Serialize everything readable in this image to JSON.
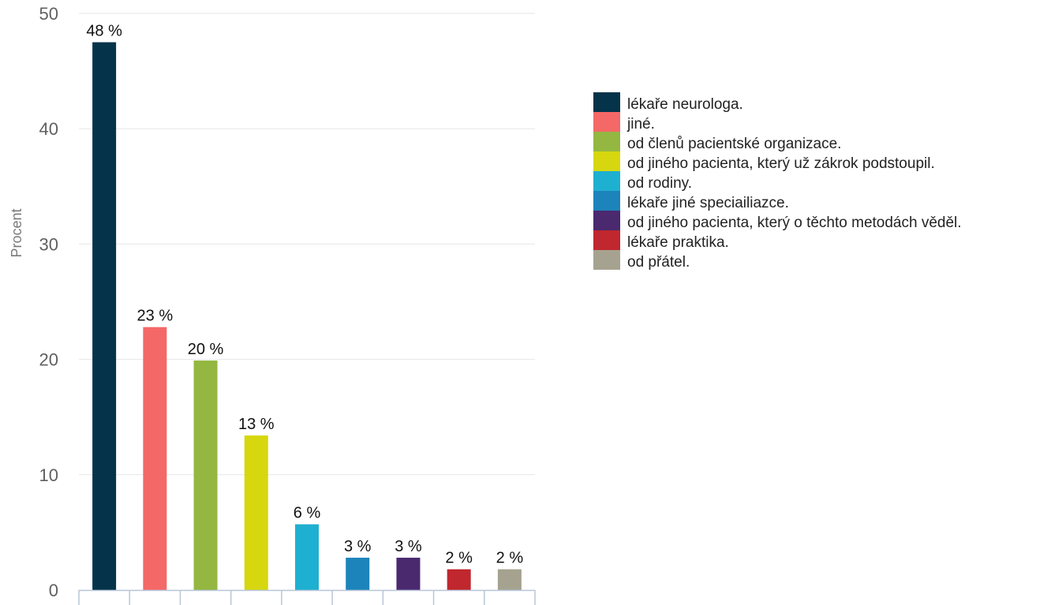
{
  "chart_data": {
    "type": "bar",
    "categories": [
      "lékaře neurologa.",
      "jiné.",
      "od členů pacientské organizace.",
      "od jiného pacienta, který už zákrok podstoupil.",
      "od rodiny.",
      "lékaře jiné speciailiazce.",
      "od jiného pacienta, který o těchto metodách věděl.",
      "lékaře praktika.",
      "od přátel."
    ],
    "values": [
      47.5,
      22.8,
      19.9,
      13.4,
      5.7,
      2.8,
      2.8,
      1.8,
      1.8
    ],
    "data_labels": [
      "48 %",
      "23 %",
      "20 %",
      "13 %",
      "6 %",
      "3 %",
      "3 %",
      "2 %",
      "2 %"
    ],
    "colors": [
      "#05344a",
      "#f46868",
      "#93b741",
      "#d6d70f",
      "#1eb0d0",
      "#1c84bb",
      "#4a296f",
      "#c0272e",
      "#a5a38f"
    ],
    "ylabel": "Procent",
    "xlabel": "",
    "ylim": [
      0,
      50
    ],
    "yticks": [
      0,
      10,
      20,
      30,
      40,
      50
    ],
    "grid": true,
    "legend_position": "right"
  }
}
